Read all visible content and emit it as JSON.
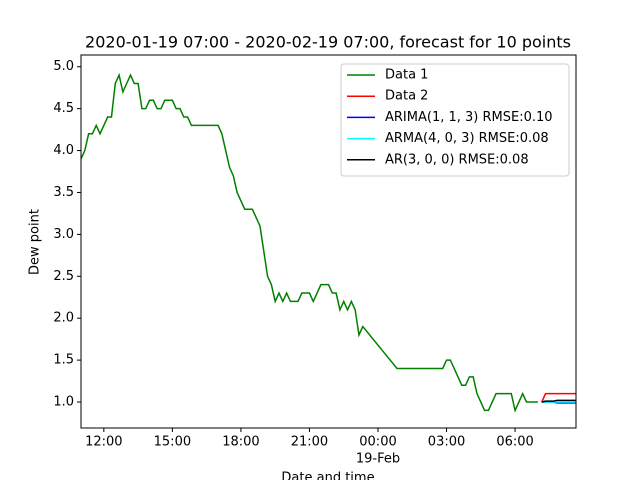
{
  "chart_data": {
    "type": "line",
    "title": "2020-01-19 07:00 - 2020-02-19 07:00, forecast for 10 points",
    "x_label": "Date and time",
    "y_label": "Dew point",
    "xlim": [
      "2020-02-18T11:00",
      "2020-02-19T08:40"
    ],
    "ylim": [
      0.69,
      5.14
    ],
    "xticks": [
      {
        "value": "2020-02-18T12:00",
        "label": "12:00"
      },
      {
        "value": "2020-02-18T15:00",
        "label": "15:00"
      },
      {
        "value": "2020-02-18T18:00",
        "label": "18:00"
      },
      {
        "value": "2020-02-18T21:00",
        "label": "21:00"
      },
      {
        "value": "2020-02-19T00:00",
        "label": "00:00",
        "date_label": "19-Feb"
      },
      {
        "value": "2020-02-19T03:00",
        "label": "03:00"
      },
      {
        "value": "2020-02-19T06:00",
        "label": "06:00"
      }
    ],
    "yticks": [
      {
        "value": 1,
        "label": "1.0"
      },
      {
        "value": 1.5,
        "label": "1.5"
      },
      {
        "value": 2,
        "label": "2.0"
      },
      {
        "value": 2.5,
        "label": "2.5"
      },
      {
        "value": 3,
        "label": "3.0"
      },
      {
        "value": 3.5,
        "label": "3.5"
      },
      {
        "value": 4,
        "label": "4.0"
      },
      {
        "value": 4.5,
        "label": "4.5"
      },
      {
        "value": 5,
        "label": "5.0"
      }
    ],
    "legend": "upper right",
    "series": [
      {
        "name": "Data 1",
        "color": "#008000",
        "x": [
          "2020-02-18T11:00",
          "2020-02-18T11:10",
          "2020-02-18T11:20",
          "2020-02-18T11:30",
          "2020-02-18T11:40",
          "2020-02-18T11:50",
          "2020-02-18T12:00",
          "2020-02-18T12:10",
          "2020-02-18T12:20",
          "2020-02-18T12:30",
          "2020-02-18T12:40",
          "2020-02-18T12:50",
          "2020-02-18T13:00",
          "2020-02-18T13:10",
          "2020-02-18T13:20",
          "2020-02-18T13:30",
          "2020-02-18T13:40",
          "2020-02-18T13:50",
          "2020-02-18T14:00",
          "2020-02-18T14:10",
          "2020-02-18T14:20",
          "2020-02-18T14:30",
          "2020-02-18T14:40",
          "2020-02-18T14:50",
          "2020-02-18T15:00",
          "2020-02-18T15:10",
          "2020-02-18T15:20",
          "2020-02-18T15:30",
          "2020-02-18T15:40",
          "2020-02-18T15:50",
          "2020-02-18T16:00",
          "2020-02-18T16:10",
          "2020-02-18T16:20",
          "2020-02-18T16:30",
          "2020-02-18T16:40",
          "2020-02-18T16:50",
          "2020-02-18T17:00",
          "2020-02-18T17:10",
          "2020-02-18T17:20",
          "2020-02-18T17:30",
          "2020-02-18T17:40",
          "2020-02-18T17:50",
          "2020-02-18T18:00",
          "2020-02-18T18:10",
          "2020-02-18T18:20",
          "2020-02-18T18:30",
          "2020-02-18T18:40",
          "2020-02-18T18:50",
          "2020-02-18T19:00",
          "2020-02-18T19:10",
          "2020-02-18T19:20",
          "2020-02-18T19:30",
          "2020-02-18T19:40",
          "2020-02-18T19:50",
          "2020-02-18T20:00",
          "2020-02-18T20:10",
          "2020-02-18T20:20",
          "2020-02-18T20:30",
          "2020-02-18T20:40",
          "2020-02-18T20:50",
          "2020-02-18T21:00",
          "2020-02-18T21:10",
          "2020-02-18T21:20",
          "2020-02-18T21:30",
          "2020-02-18T21:40",
          "2020-02-18T21:50",
          "2020-02-18T22:00",
          "2020-02-18T22:10",
          "2020-02-18T22:20",
          "2020-02-18T22:30",
          "2020-02-18T22:40",
          "2020-02-18T22:50",
          "2020-02-18T23:00",
          "2020-02-18T23:10",
          "2020-02-18T23:20",
          "2020-02-19T00:50",
          "2020-02-19T02:50",
          "2020-02-19T03:00",
          "2020-02-19T03:10",
          "2020-02-19T03:20",
          "2020-02-19T03:30",
          "2020-02-19T03:40",
          "2020-02-19T03:50",
          "2020-02-19T04:00",
          "2020-02-19T04:10",
          "2020-02-19T04:20",
          "2020-02-19T04:30",
          "2020-02-19T04:40",
          "2020-02-19T04:50",
          "2020-02-19T05:00",
          "2020-02-19T05:10",
          "2020-02-19T05:20",
          "2020-02-19T05:30",
          "2020-02-19T05:40",
          "2020-02-19T05:50",
          "2020-02-19T06:00",
          "2020-02-19T06:10",
          "2020-02-19T06:20",
          "2020-02-19T06:30",
          "2020-02-19T06:40",
          "2020-02-19T06:50",
          "2020-02-19T07:00"
        ],
        "values": [
          3.9,
          4.0,
          4.2,
          4.2,
          4.3,
          4.2,
          4.3,
          4.4,
          4.4,
          4.8,
          4.9,
          4.7,
          4.8,
          4.9,
          4.8,
          4.8,
          4.5,
          4.5,
          4.6,
          4.6,
          4.5,
          4.5,
          4.6,
          4.6,
          4.6,
          4.5,
          4.5,
          4.4,
          4.4,
          4.3,
          4.3,
          4.3,
          4.3,
          4.3,
          4.3,
          4.3,
          4.3,
          4.2,
          4.0,
          3.8,
          3.7,
          3.5,
          3.4,
          3.3,
          3.3,
          3.3,
          3.2,
          3.1,
          2.8,
          2.5,
          2.4,
          2.2,
          2.3,
          2.2,
          2.3,
          2.2,
          2.2,
          2.2,
          2.3,
          2.3,
          2.3,
          2.2,
          2.3,
          2.4,
          2.4,
          2.4,
          2.3,
          2.3,
          2.1,
          2.2,
          2.1,
          2.2,
          2.1,
          1.8,
          1.9,
          1.4,
          1.4,
          1.5,
          1.5,
          1.4,
          1.3,
          1.2,
          1.2,
          1.3,
          1.3,
          1.1,
          1.0,
          0.9,
          0.9,
          1.0,
          1.1,
          1.1,
          1.1,
          1.1,
          1.1,
          0.9,
          1.0,
          1.1,
          1.0,
          1.0,
          1.0,
          1.0
        ]
      },
      {
        "name": "Data 2",
        "color": "#ff0000",
        "x": [
          "2020-02-19T07:10",
          "2020-02-19T07:20",
          "2020-02-19T07:30",
          "2020-02-19T07:40",
          "2020-02-19T07:50",
          "2020-02-19T08:00",
          "2020-02-19T08:10",
          "2020-02-19T08:20",
          "2020-02-19T08:30",
          "2020-02-19T08:40"
        ],
        "values": [
          1.0,
          1.1,
          1.1,
          1.1,
          1.1,
          1.1,
          1.1,
          1.1,
          1.1,
          1.1
        ]
      },
      {
        "name": "ARIMA(1, 1, 3) RMSE:0.10",
        "color": "#0000ff",
        "x": [
          "2020-02-19T07:10",
          "2020-02-19T07:20",
          "2020-02-19T07:30",
          "2020-02-19T07:40",
          "2020-02-19T07:50",
          "2020-02-19T08:00",
          "2020-02-19T08:10",
          "2020-02-19T08:20",
          "2020-02-19T08:30",
          "2020-02-19T08:40"
        ],
        "values": [
          1.0,
          1.0,
          1.0,
          1.0,
          0.99,
          0.99,
          0.99,
          0.99,
          0.99,
          0.99
        ]
      },
      {
        "name": "ARMA(4, 0, 3) RMSE:0.08",
        "color": "#00ffff",
        "x": [
          "2020-02-19T07:10",
          "2020-02-19T07:20",
          "2020-02-19T07:30",
          "2020-02-19T07:40",
          "2020-02-19T07:50",
          "2020-02-19T08:00",
          "2020-02-19T08:10",
          "2020-02-19T08:20",
          "2020-02-19T08:30",
          "2020-02-19T08:40"
        ],
        "values": [
          1.0,
          1.0,
          1.0,
          1.0,
          1.0,
          1.0,
          1.0,
          1.0,
          1.0,
          1.0
        ]
      },
      {
        "name": "AR(3, 0, 0) RMSE:0.08",
        "color": "#000000",
        "x": [
          "2020-02-19T07:10",
          "2020-02-19T07:20",
          "2020-02-19T07:30",
          "2020-02-19T07:40",
          "2020-02-19T07:50",
          "2020-02-19T08:00",
          "2020-02-19T08:10",
          "2020-02-19T08:20",
          "2020-02-19T08:30",
          "2020-02-19T08:40"
        ],
        "values": [
          1.0,
          1.01,
          1.01,
          1.01,
          1.02,
          1.02,
          1.02,
          1.02,
          1.02,
          1.02
        ]
      }
    ]
  }
}
